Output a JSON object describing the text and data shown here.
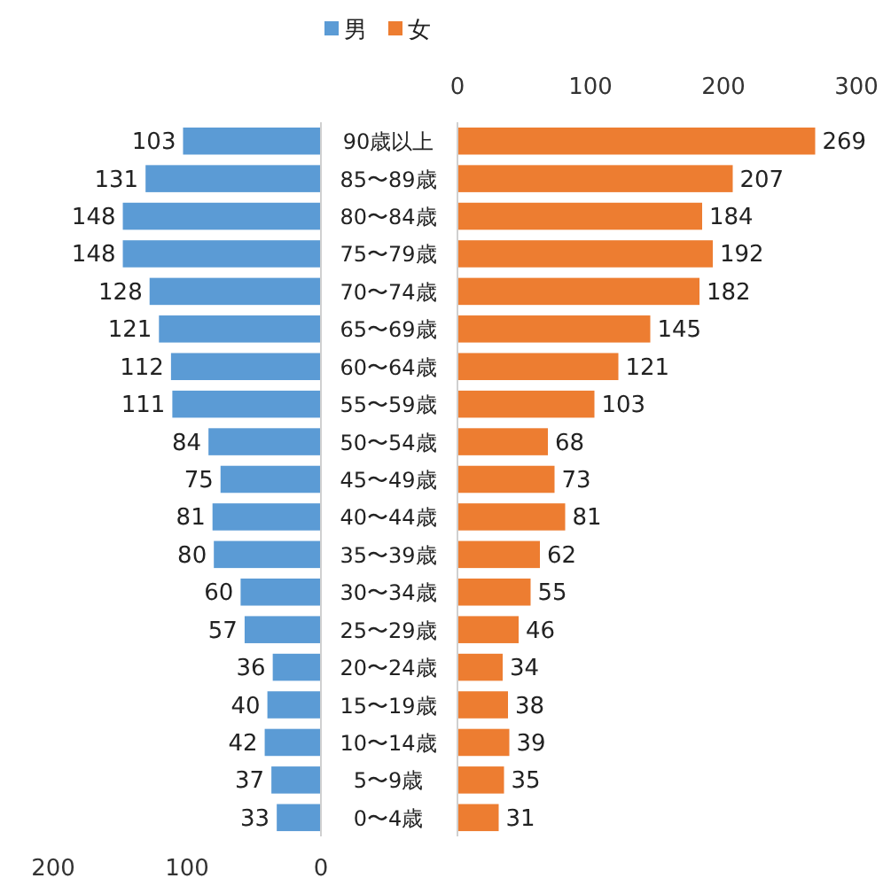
{
  "chart_data": [
    {
      "type": "bar",
      "orientation": "horizontal",
      "categories": [
        null,
        null,
        null,
        null,
        null,
        null,
        null,
        null,
        null,
        null,
        null,
        null,
        null,
        null,
        null,
        null,
        null,
        null,
        null
      ],
      "series": [
        {
          "name": "男",
          "color": "#5b9bd5",
          "values": [
            103,
            131,
            148,
            148,
            128,
            121,
            112,
            111,
            84,
            75,
            81,
            80,
            60,
            57,
            36,
            40,
            42,
            37,
            33
          ]
        }
      ],
      "xlim": [
        200,
        0
      ],
      "xticks": [
        200,
        100,
        0
      ],
      "tick_labels": "x",
      "data_labels": true,
      "legend": "top"
    },
    {
      "type": "bar",
      "orientation": "horizontal",
      "categories": [
        "90歳以上",
        "85〜89歳",
        "80〜84歳",
        "75〜79歳",
        "70〜74歳",
        "65〜69歳",
        "60〜64歳",
        "55〜59歳",
        "50〜54歳",
        "45〜49歳",
        "40〜44歳",
        "35〜39歳",
        "30〜34歳",
        "25〜29歳",
        "20〜24歳",
        "15〜19歳",
        "10〜14歳",
        "5〜9歳",
        "0〜4歳"
      ],
      "series": [
        {
          "name": "女",
          "color": "#ed7d31",
          "values": [
            269,
            207,
            184,
            192,
            182,
            145,
            121,
            103,
            68,
            73,
            81,
            62,
            55,
            46,
            34,
            38,
            39,
            35,
            31
          ]
        }
      ],
      "x2lim": [
        0,
        300
      ],
      "x2ticks": [
        0,
        100,
        200,
        300
      ],
      "data_labels": true,
      "legend": "top"
    }
  ]
}
